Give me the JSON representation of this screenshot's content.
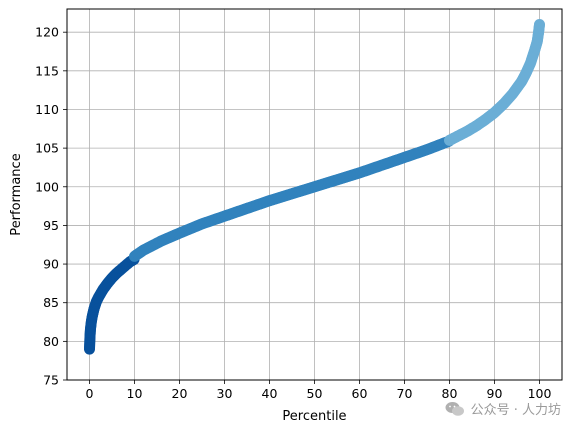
{
  "chart_data": {
    "type": "scatter",
    "title": "",
    "xlabel": "Percentile",
    "ylabel": "Performance",
    "xlim": [
      -5,
      105
    ],
    "ylim": [
      75,
      123
    ],
    "x_ticks": [
      0,
      10,
      20,
      30,
      40,
      50,
      60,
      70,
      80,
      90,
      100
    ],
    "y_ticks": [
      75,
      80,
      85,
      90,
      95,
      100,
      105,
      110,
      115,
      120
    ],
    "grid": true,
    "legend": "none",
    "series": [
      {
        "color": "#08519c",
        "x": [
          0,
          0.1,
          0.2,
          0.4,
          0.6,
          1,
          1.5,
          2,
          3,
          4,
          5,
          6,
          7,
          8,
          9,
          9.9
        ],
        "y": [
          79,
          80.5,
          81.5,
          82.5,
          83.2,
          84.2,
          85.1,
          85.7,
          86.7,
          87.5,
          88.2,
          88.8,
          89.3,
          89.8,
          90.3,
          90.6
        ]
      },
      {
        "color": "#3182bd",
        "x": [
          10,
          12,
          14,
          16,
          18,
          20,
          25,
          30,
          35,
          40,
          45,
          50,
          55,
          60,
          65,
          70,
          75,
          79.9
        ],
        "y": [
          91,
          91.8,
          92.4,
          93,
          93.5,
          94,
          95.2,
          96.2,
          97.2,
          98.2,
          99.1,
          100,
          100.9,
          101.8,
          102.8,
          103.8,
          104.8,
          105.9
        ]
      },
      {
        "color": "#6baed6",
        "x": [
          80,
          82,
          84,
          86,
          88,
          90,
          92,
          94,
          96,
          97,
          98,
          99,
          99.5,
          99.8,
          100
        ],
        "y": [
          106,
          106.6,
          107.2,
          107.9,
          108.7,
          109.6,
          110.7,
          112,
          113.6,
          114.7,
          116,
          117.8,
          118.8,
          120,
          121
        ]
      }
    ]
  },
  "watermark": {
    "text": "公众号 · 人力坊",
    "icon": "wechat-icon"
  }
}
